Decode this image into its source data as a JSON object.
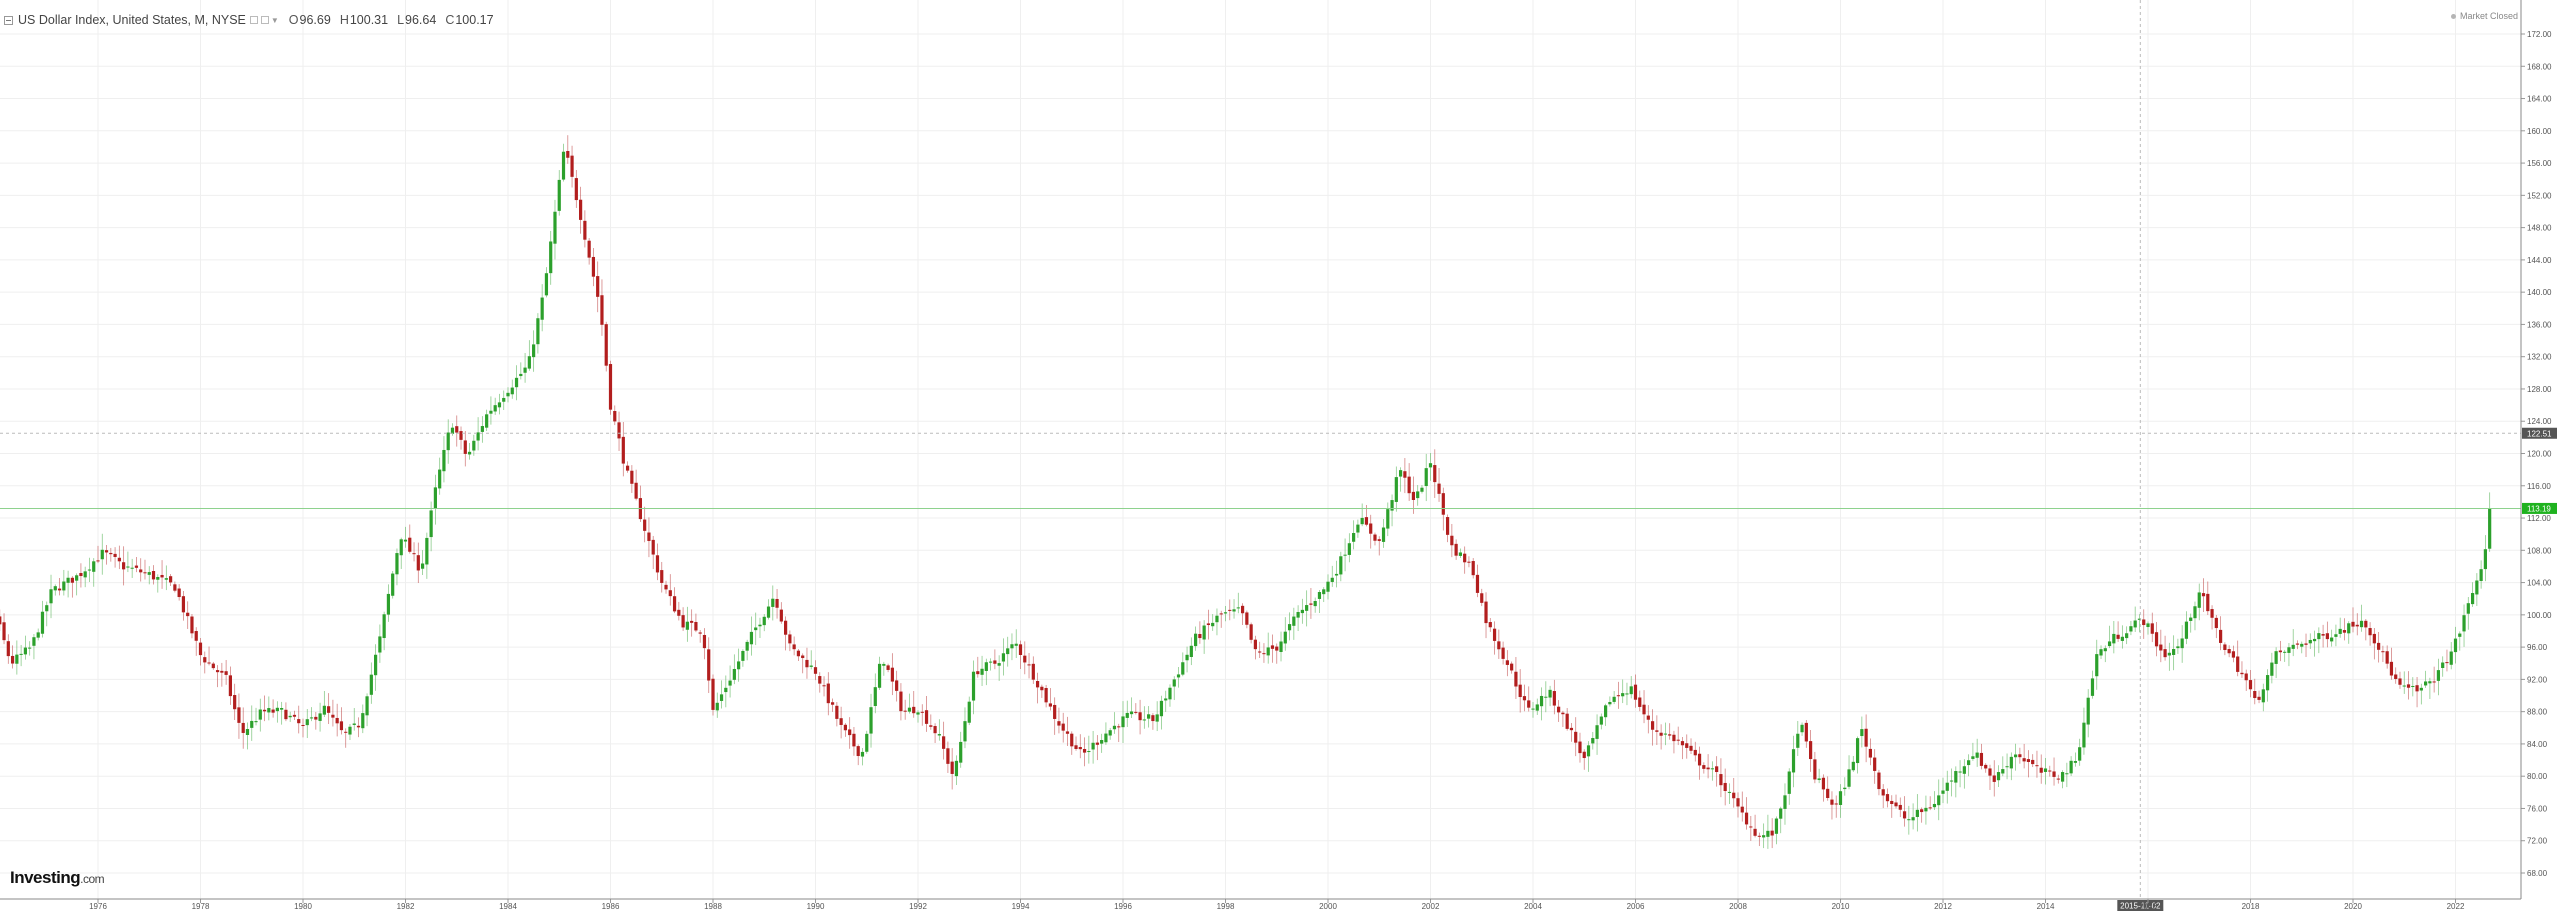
{
  "legend": {
    "title": "US Dollar Index, United States, M, NYSE",
    "open_label": "O",
    "open": "96.69",
    "high_label": "H",
    "high": "100.31",
    "low_label": "L",
    "low": "96.64",
    "close_label": "C",
    "close": "100.17"
  },
  "status_text": "Market Closed",
  "brand": {
    "name": "Investing",
    "suffix": ".com"
  },
  "crosshair": {
    "date_label": "2015-11-02",
    "price_label": "122.51"
  },
  "last_price_label": "113.19",
  "colors": {
    "up": "#2ca02c",
    "down": "#b21e1e",
    "grid": "#efefef",
    "axis_text": "#555555",
    "last_price_line": "#8ed28e",
    "last_price_tag": "#1fb21f",
    "crosshair": "#bbbbbb",
    "crosshair_tag": "#555555"
  },
  "chart_data": {
    "type": "candlestick",
    "title": "US Dollar Index, United States, M, NYSE",
    "interval": "monthly",
    "ylim": [
      66.0,
      176.0
    ],
    "xlim": [
      1973.0,
      2023.2
    ],
    "y_ticks": [
      "68.00",
      "72.00",
      "76.00",
      "80.00",
      "84.00",
      "88.00",
      "92.00",
      "96.00",
      "100.00",
      "104.00",
      "108.00",
      "112.00",
      "116.00",
      "120.00",
      "124.00",
      "128.00",
      "132.00",
      "136.00",
      "140.00",
      "144.00",
      "148.00",
      "152.00",
      "156.00",
      "160.00",
      "164.00",
      "168.00",
      "172.00"
    ],
    "x_ticks": [
      "1976",
      "1978",
      "1980",
      "1982",
      "1984",
      "1986",
      "1988",
      "1990",
      "1992",
      "1994",
      "1996",
      "1998",
      "2000",
      "2002",
      "2004",
      "2006",
      "2008",
      "2010",
      "2012",
      "2014",
      "2016",
      "2018",
      "2020",
      "2022"
    ],
    "grid": true,
    "close_path": [
      [
        1973.0,
        102.0
      ],
      [
        1973.4,
        98.5
      ],
      [
        1973.8,
        104.0
      ],
      [
        1974.3,
        94.0
      ],
      [
        1974.7,
        96.0
      ],
      [
        1975.1,
        103.0
      ],
      [
        1975.6,
        104.8
      ],
      [
        1976.1,
        107.7
      ],
      [
        1976.5,
        106.0
      ],
      [
        1977.0,
        105.0
      ],
      [
        1977.5,
        103.5
      ],
      [
        1978.0,
        95.0
      ],
      [
        1978.5,
        92.0
      ],
      [
        1978.8,
        85.2
      ],
      [
        1979.2,
        88.0
      ],
      [
        1979.6,
        88.0
      ],
      [
        1980.0,
        86.0
      ],
      [
        1980.4,
        88.5
      ],
      [
        1980.8,
        85.0
      ],
      [
        1981.1,
        86.5
      ],
      [
        1981.5,
        97.0
      ],
      [
        1981.9,
        110.0
      ],
      [
        1982.3,
        105.5
      ],
      [
        1982.6,
        116.0
      ],
      [
        1982.9,
        124.0
      ],
      [
        1983.2,
        119.5
      ],
      [
        1983.6,
        125.0
      ],
      [
        1984.0,
        128.0
      ],
      [
        1984.4,
        131.0
      ],
      [
        1984.7,
        140.0
      ],
      [
        1985.1,
        158.0
      ],
      [
        1985.4,
        150.0
      ],
      [
        1985.8,
        138.0
      ],
      [
        1986.0,
        126.0
      ],
      [
        1986.3,
        118.0
      ],
      [
        1986.7,
        110.0
      ],
      [
        1987.0,
        104.0
      ],
      [
        1987.4,
        99.0
      ],
      [
        1987.8,
        98.0
      ],
      [
        1988.0,
        88.0
      ],
      [
        1988.4,
        93.0
      ],
      [
        1988.8,
        98.0
      ],
      [
        1989.2,
        102.5
      ],
      [
        1989.5,
        96.0
      ],
      [
        1990.0,
        93.0
      ],
      [
        1990.5,
        86.0
      ],
      [
        1990.9,
        82.5
      ],
      [
        1991.3,
        95.0
      ],
      [
        1991.7,
        88.0
      ],
      [
        1992.0,
        88.5
      ],
      [
        1992.4,
        85.0
      ],
      [
        1992.7,
        79.8
      ],
      [
        1993.1,
        93.0
      ],
      [
        1993.5,
        94.0
      ],
      [
        1993.9,
        96.5
      ],
      [
        1994.3,
        92.0
      ],
      [
        1994.7,
        87.0
      ],
      [
        1995.2,
        82.5
      ],
      [
        1995.6,
        85.0
      ],
      [
        1996.1,
        87.5
      ],
      [
        1996.6,
        87.0
      ],
      [
        1997.0,
        92.0
      ],
      [
        1997.4,
        97.0
      ],
      [
        1997.9,
        100.0
      ],
      [
        1998.3,
        100.5
      ],
      [
        1998.6,
        95.0
      ],
      [
        1999.0,
        96.0
      ],
      [
        1999.4,
        100.0
      ],
      [
        1999.9,
        103.0
      ],
      [
        2000.2,
        106.0
      ],
      [
        2000.6,
        112.0
      ],
      [
        2001.0,
        109.0
      ],
      [
        2001.4,
        118.0
      ],
      [
        2001.7,
        114.0
      ],
      [
        2002.0,
        119.0
      ],
      [
        2002.4,
        108.5
      ],
      [
        2002.8,
        106.0
      ],
      [
        2003.1,
        99.0
      ],
      [
        2003.5,
        94.0
      ],
      [
        2003.9,
        88.0
      ],
      [
        2004.3,
        90.5
      ],
      [
        2004.7,
        86.0
      ],
      [
        2005.0,
        82.0
      ],
      [
        2005.5,
        89.5
      ],
      [
        2005.9,
        91.0
      ],
      [
        2006.3,
        86.0
      ],
      [
        2006.8,
        84.5
      ],
      [
        2007.2,
        82.0
      ],
      [
        2007.6,
        80.0
      ],
      [
        2008.0,
        76.0
      ],
      [
        2008.4,
        72.5
      ],
      [
        2008.7,
        73.0
      ],
      [
        2009.0,
        80.0
      ],
      [
        2009.2,
        87.0
      ],
      [
        2009.5,
        80.0
      ],
      [
        2009.9,
        76.0
      ],
      [
        2010.2,
        81.0
      ],
      [
        2010.4,
        86.0
      ],
      [
        2010.8,
        78.0
      ],
      [
        2011.3,
        74.5
      ],
      [
        2011.8,
        76.5
      ],
      [
        2012.2,
        80.0
      ],
      [
        2012.6,
        83.0
      ],
      [
        2013.0,
        79.5
      ],
      [
        2013.4,
        83.0
      ],
      [
        2013.9,
        80.5
      ],
      [
        2014.3,
        80.0
      ],
      [
        2014.6,
        82.0
      ],
      [
        2015.0,
        95.0
      ],
      [
        2015.3,
        97.0
      ],
      [
        2015.9,
        99.5
      ],
      [
        2016.3,
        95.0
      ],
      [
        2016.6,
        96.0
      ],
      [
        2017.0,
        103.0
      ],
      [
        2017.4,
        97.0
      ],
      [
        2017.9,
        92.0
      ],
      [
        2018.1,
        89.0
      ],
      [
        2018.5,
        95.0
      ],
      [
        2019.0,
        96.5
      ],
      [
        2019.5,
        97.5
      ],
      [
        2019.9,
        98.5
      ],
      [
        2020.2,
        99.5
      ],
      [
        2020.5,
        96.0
      ],
      [
        2020.9,
        91.0
      ],
      [
        2021.3,
        90.5
      ],
      [
        2021.7,
        93.0
      ],
      [
        2022.0,
        96.5
      ],
      [
        2022.4,
        104.0
      ],
      [
        2022.6,
        108.0
      ],
      [
        2022.7,
        113.19
      ]
    ]
  }
}
